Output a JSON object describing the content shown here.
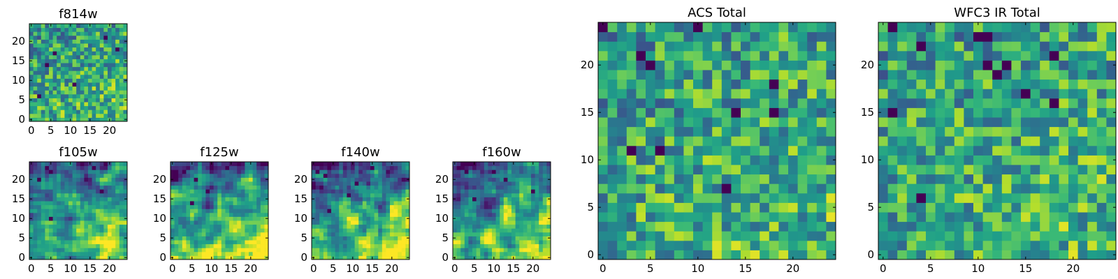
{
  "chart_data": [
    {
      "type": "heatmap",
      "title": "f814w",
      "size": 25,
      "colormap": "viridis",
      "xticks": [
        0,
        5,
        10,
        15,
        20
      ],
      "yticks": [
        0,
        5,
        10,
        15,
        20
      ],
      "style": "noisy",
      "seed": 11,
      "dark_points": [
        [
          4,
          14
        ],
        [
          6,
          17
        ],
        [
          19,
          21
        ],
        [
          11,
          9
        ],
        [
          22,
          18
        ],
        [
          2,
          6
        ]
      ]
    },
    {
      "type": "heatmap",
      "title": "f105w",
      "size": 25,
      "colormap": "viridis",
      "xticks": [
        0,
        5,
        10,
        15,
        20
      ],
      "yticks": [
        0,
        5,
        10,
        15,
        20
      ],
      "style": "smooth",
      "seed": 22,
      "dark_points": [
        [
          4,
          23
        ],
        [
          5,
          22
        ],
        [
          5,
          10
        ],
        [
          16,
          23
        ],
        [
          18,
          17
        ],
        [
          2,
          20
        ]
      ]
    },
    {
      "type": "heatmap",
      "title": "f125w",
      "size": 25,
      "colormap": "viridis",
      "xticks": [
        0,
        5,
        10,
        15,
        20
      ],
      "yticks": [
        0,
        5,
        10,
        15,
        20
      ],
      "style": "smooth",
      "seed": 33,
      "dark_points": [
        [
          3,
          22
        ],
        [
          6,
          20
        ],
        [
          9,
          17
        ],
        [
          14,
          23
        ],
        [
          5,
          14
        ]
      ]
    },
    {
      "type": "heatmap",
      "title": "f140w",
      "size": 25,
      "colormap": "viridis",
      "xticks": [
        0,
        5,
        10,
        15,
        20
      ],
      "yticks": [
        0,
        5,
        10,
        15,
        20
      ],
      "style": "smooth",
      "seed": 44,
      "dark_points": [
        [
          1,
          22
        ],
        [
          3,
          21
        ],
        [
          9,
          16
        ],
        [
          11,
          19
        ],
        [
          15,
          23
        ],
        [
          4,
          12
        ]
      ]
    },
    {
      "type": "heatmap",
      "title": "f160w",
      "size": 25,
      "colormap": "viridis",
      "xticks": [
        0,
        5,
        10,
        15,
        20
      ],
      "yticks": [
        0,
        5,
        10,
        15,
        20
      ],
      "style": "smooth",
      "seed": 55,
      "dark_points": [
        [
          1,
          23
        ],
        [
          3,
          22
        ],
        [
          10,
          22
        ],
        [
          13,
          20
        ],
        [
          20,
          17
        ],
        [
          5,
          15
        ]
      ]
    },
    {
      "type": "heatmap",
      "title": "ACS Total",
      "size": 25,
      "colormap": "viridis",
      "xticks": [
        0,
        5,
        10,
        15,
        20
      ],
      "yticks": [
        0,
        5,
        10,
        15,
        20
      ],
      "style": "noisy",
      "seed": 66,
      "dark_points": [
        [
          10,
          24
        ],
        [
          4,
          21
        ],
        [
          5,
          20
        ],
        [
          6,
          11
        ],
        [
          14,
          15
        ],
        [
          18,
          15
        ],
        [
          18,
          18
        ],
        [
          13,
          7
        ],
        [
          0,
          24
        ],
        [
          3,
          11
        ]
      ]
    },
    {
      "type": "heatmap",
      "title": "WFC3 IR Total",
      "size": 25,
      "colormap": "viridis",
      "xticks": [
        0,
        5,
        10,
        15,
        20
      ],
      "yticks": [
        0,
        5,
        10,
        15,
        20
      ],
      "style": "noisy",
      "seed": 77,
      "dark_points": [
        [
          1,
          24
        ],
        [
          4,
          22
        ],
        [
          10,
          23
        ],
        [
          11,
          23
        ],
        [
          11,
          20
        ],
        [
          12,
          19
        ],
        [
          13,
          20
        ],
        [
          1,
          15
        ],
        [
          4,
          6
        ],
        [
          18,
          16
        ],
        [
          15,
          17
        ],
        [
          18,
          21
        ]
      ]
    }
  ]
}
